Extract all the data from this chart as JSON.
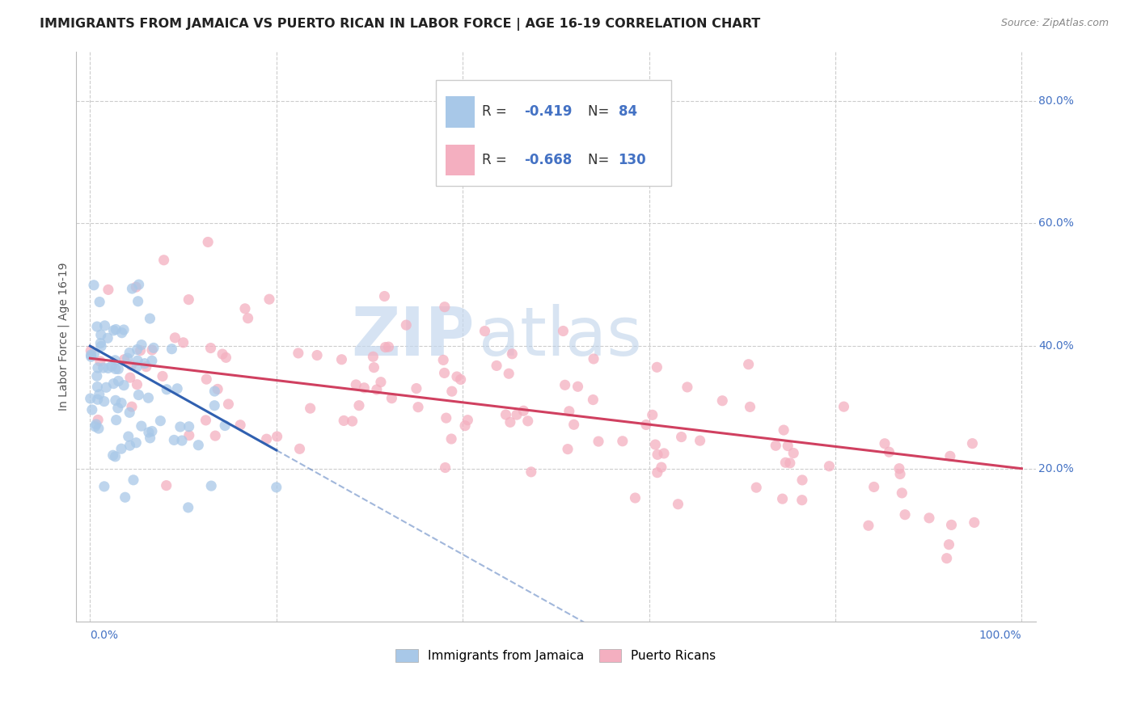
{
  "title": "IMMIGRANTS FROM JAMAICA VS PUERTO RICAN IN LABOR FORCE | AGE 16-19 CORRELATION CHART",
  "source": "Source: ZipAtlas.com",
  "ylabel": "In Labor Force | Age 16-19",
  "legend_label1": "Immigrants from Jamaica",
  "legend_label2": "Puerto Ricans",
  "R1": -0.419,
  "N1": 84,
  "R2": -0.668,
  "N2": 130,
  "color_jamaica": "#a8c8e8",
  "color_pr": "#f4afc0",
  "color_line_jamaica": "#3060b0",
  "color_line_pr": "#d04060",
  "watermark_zip": "ZIP",
  "watermark_atlas": "atlas",
  "title_fontsize": 11.5,
  "source_fontsize": 9,
  "legend_fontsize": 12,
  "axis_label_fontsize": 10,
  "scatter_alpha": 0.75,
  "scatter_size": 90
}
